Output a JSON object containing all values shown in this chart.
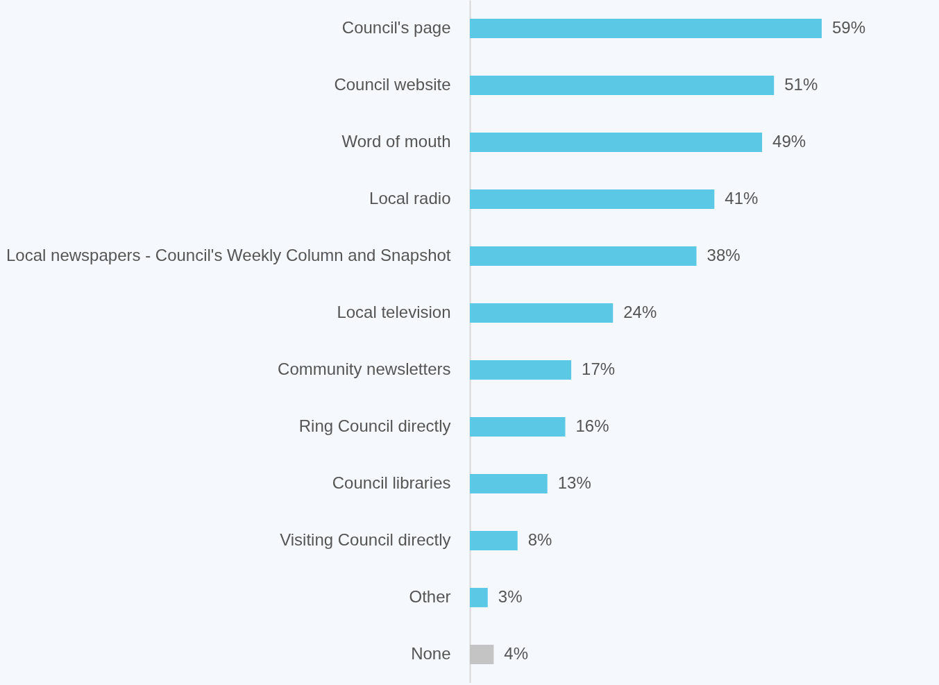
{
  "chart_data": {
    "type": "bar",
    "orientation": "horizontal",
    "categories": [
      "Council's page",
      "Council website",
      "Word of mouth",
      "Local radio",
      "Local newspapers - Council's Weekly Column and Snapshot",
      "Local television",
      "Community newsletters",
      "Ring Council directly",
      "Council libraries",
      "Visiting Council directly",
      "Other",
      "None"
    ],
    "values": [
      59,
      51,
      49,
      41,
      38,
      24,
      17,
      16,
      13,
      8,
      3,
      4
    ],
    "colors": [
      "#5bc9e6",
      "#5bc9e6",
      "#5bc9e6",
      "#5bc9e6",
      "#5bc9e6",
      "#5bc9e6",
      "#5bc9e6",
      "#5bc9e6",
      "#5bc9e6",
      "#5bc9e6",
      "#5bc9e6",
      "#c4c4c4"
    ],
    "value_labels": [
      "59%",
      "51%",
      "49%",
      "41%",
      "38%",
      "24%",
      "17%",
      "16%",
      "13%",
      "8%",
      "3%",
      "4%"
    ],
    "grid": false
  }
}
